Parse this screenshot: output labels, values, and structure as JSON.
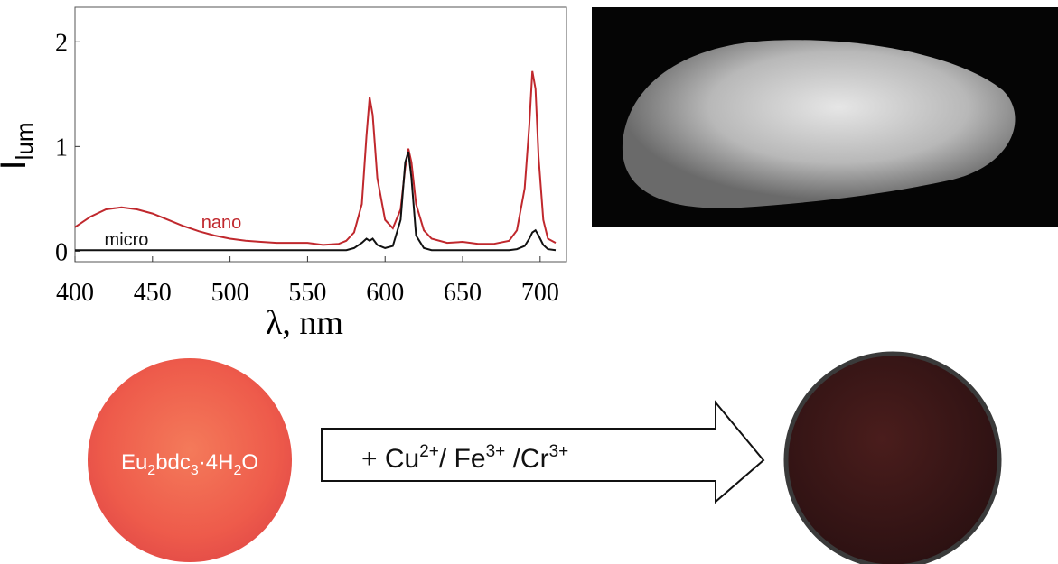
{
  "chart_data": {
    "type": "line",
    "ylabel": [
      "I",
      "lum"
    ],
    "xlabel": "λ, nm",
    "x": [
      400,
      410,
      420,
      430,
      440,
      450,
      460,
      470,
      480,
      490,
      500,
      510,
      520,
      530,
      540,
      550,
      560,
      570,
      575,
      580,
      585,
      588,
      590,
      592,
      595,
      600,
      605,
      610,
      613,
      615,
      617,
      620,
      625,
      630,
      640,
      650,
      660,
      670,
      680,
      685,
      690,
      693,
      695,
      697,
      699,
      702,
      705,
      710
    ],
    "series": [
      {
        "name": "nano",
        "color": "#c0282d",
        "values": [
          0.23,
          0.33,
          0.4,
          0.42,
          0.4,
          0.36,
          0.3,
          0.24,
          0.19,
          0.15,
          0.12,
          0.1,
          0.09,
          0.08,
          0.08,
          0.08,
          0.06,
          0.07,
          0.1,
          0.18,
          0.45,
          1.1,
          1.47,
          1.3,
          0.7,
          0.3,
          0.22,
          0.4,
          0.8,
          0.98,
          0.85,
          0.45,
          0.2,
          0.12,
          0.08,
          0.09,
          0.07,
          0.07,
          0.1,
          0.2,
          0.6,
          1.2,
          1.72,
          1.55,
          0.9,
          0.3,
          0.12,
          0.08
        ]
      },
      {
        "name": "micro",
        "color": "#111111",
        "values": [
          0.01,
          0.01,
          0.01,
          0.01,
          0.01,
          0.01,
          0.01,
          0.01,
          0.01,
          0.01,
          0.01,
          0.01,
          0.01,
          0.01,
          0.01,
          0.01,
          0.01,
          0.01,
          0.01,
          0.03,
          0.08,
          0.12,
          0.1,
          0.12,
          0.06,
          0.03,
          0.05,
          0.3,
          0.85,
          0.95,
          0.7,
          0.15,
          0.03,
          0.01,
          0.01,
          0.01,
          0.01,
          0.01,
          0.01,
          0.02,
          0.05,
          0.12,
          0.18,
          0.2,
          0.15,
          0.06,
          0.02,
          0.01
        ]
      }
    ],
    "xlim": [
      400,
      717
    ],
    "ylim": [
      -0.1,
      2.33
    ],
    "xticks": [
      400,
      450,
      500,
      550,
      600,
      650,
      700
    ],
    "yticks": [
      0,
      1,
      2
    ]
  },
  "scheme": {
    "sample_label": [
      "Eu",
      "2",
      "bdc",
      "3",
      "·4H",
      "2",
      "O"
    ],
    "reagent_label": [
      "+ Cu",
      "2+",
      "/ Fe",
      "3+",
      " /Cr",
      "3+"
    ]
  }
}
